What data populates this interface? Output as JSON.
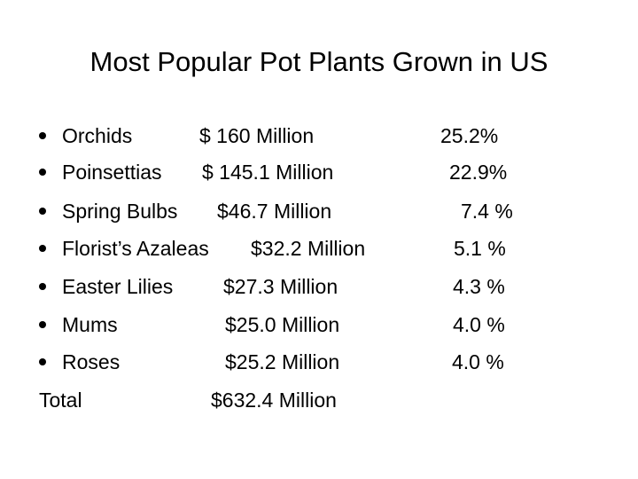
{
  "title": "Most Popular Pot Plants Grown in US",
  "items": [
    {
      "name": "Orchids",
      "amount": "$ 160 Million",
      "share": "25.2%"
    },
    {
      "name": "Poinsettias",
      "amount": "$ 145.1 Million",
      "share": "22.9%"
    },
    {
      "name": "Spring Bulbs",
      "amount": "$46.7 Million",
      "share": "7.4 %"
    },
    {
      "name": "Florist’s Azaleas",
      "amount": "$32.2 Million",
      "share": "5.1 %"
    },
    {
      "name": "Easter Lilies",
      "amount": "$27.3 Million",
      "share": "4.3 %"
    },
    {
      "name": "Mums",
      "amount": "$25.0 Million",
      "share": "4.0 %"
    },
    {
      "name": "Roses",
      "amount": "$25.2 Million",
      "share": "4.0 %"
    }
  ],
  "total": {
    "label": "Total",
    "amount": "$632.4 Million"
  }
}
